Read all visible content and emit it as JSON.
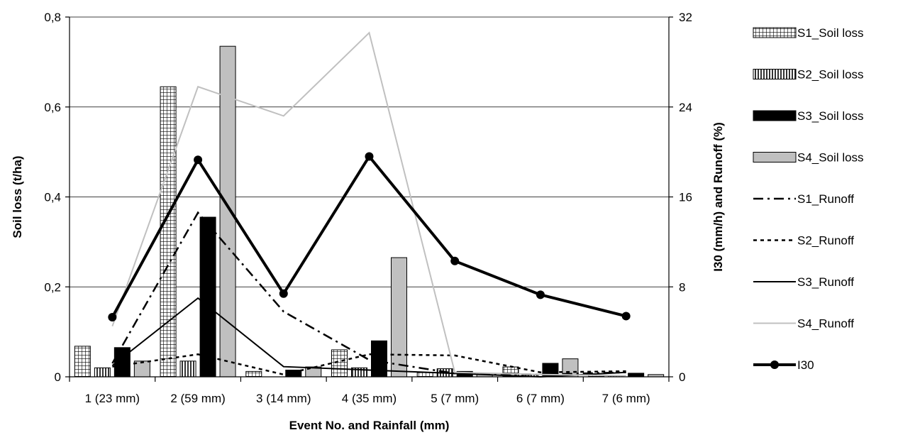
{
  "chart_data": {
    "type": "bar",
    "title": "",
    "xlabel": "Event No. and Rainfall (mm)",
    "ylabel": "Soil loss (t/ha)",
    "y2label": "I30 (mm/h) and Runoff (%)",
    "categories": [
      "1 (23 mm)",
      "2 (59 mm)",
      "3 (14 mm)",
      "4 (35 mm)",
      "5 (7 mm)",
      "6 (7 mm)",
      "7 (6 mm)"
    ],
    "ylim": [
      0,
      0.8
    ],
    "y2lim": [
      0,
      32
    ],
    "yticks": [
      "0",
      "0,2",
      "0,4",
      "0,6",
      "0,8"
    ],
    "y2ticks": [
      "0",
      "8",
      "16",
      "24",
      "32"
    ],
    "grid": true,
    "legend_position": "right",
    "bar_series": [
      {
        "name": "S1_Soil loss",
        "axis": "left",
        "pattern": "grid",
        "color": "#000000",
        "values": [
          0.068,
          0.645,
          0.012,
          0.06,
          0.01,
          0.022,
          0.003
        ]
      },
      {
        "name": "S2_Soil loss",
        "axis": "left",
        "pattern": "vertical-lines",
        "color": "#000000",
        "values": [
          0.02,
          0.035,
          0.0,
          0.02,
          0.018,
          0.005,
          0.002
        ]
      },
      {
        "name": "S3_Soil loss",
        "axis": "left",
        "pattern": "solid",
        "color": "#000000",
        "values": [
          0.065,
          0.355,
          0.015,
          0.08,
          0.012,
          0.03,
          0.008
        ]
      },
      {
        "name": "S4_Soil loss",
        "axis": "left",
        "pattern": "solid",
        "color": "#c0c0c0",
        "values": [
          0.035,
          0.735,
          0.022,
          0.265,
          0.005,
          0.04,
          0.005
        ]
      }
    ],
    "line_series": [
      {
        "name": "S1_Runoff",
        "axis": "right",
        "style": "dash-dot",
        "color": "#000000",
        "values": [
          1.2,
          14.6,
          5.8,
          1.5,
          0.3,
          0.2,
          0.4
        ]
      },
      {
        "name": "S2_Runoff",
        "axis": "right",
        "style": "dotted",
        "color": "#000000",
        "values": [
          0.9,
          2.0,
          0.2,
          2.0,
          1.9,
          0.4,
          0.5
        ]
      },
      {
        "name": "S3_Runoff",
        "axis": "right",
        "style": "solid-thin",
        "color": "#000000",
        "values": [
          1.0,
          7.0,
          0.9,
          0.6,
          0.3,
          0.0,
          0.4
        ]
      },
      {
        "name": "S4_Runoff",
        "axis": "right",
        "style": "solid-thin",
        "color": "#c0c0c0",
        "values": [
          4.5,
          25.8,
          23.2,
          30.6,
          0.4,
          0.2,
          0.1
        ]
      },
      {
        "name": "I30",
        "axis": "right",
        "style": "solid-thick-markers",
        "color": "#000000",
        "values": [
          5.3,
          19.3,
          7.4,
          19.6,
          10.3,
          7.3,
          5.4
        ]
      }
    ]
  }
}
